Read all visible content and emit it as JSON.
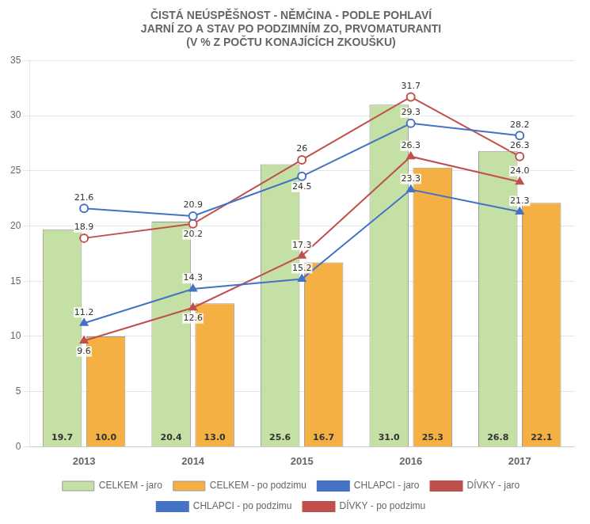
{
  "chart_data": {
    "type": "bar",
    "title": "ČISTÁ NEÚSPĚŠNOST - NĚMČINA - PODLE POHLAVÍ\nJARNÍ ZO A STAV PO PODZIMNÍM ZO, PRVOMATURANTI\n(V % Z POČTU KONAJÍCÍCH ZKOUŠKU)",
    "categories": [
      "2013",
      "2014",
      "2015",
      "2016",
      "2017"
    ],
    "series": [
      {
        "name": "CELKEM - jaro",
        "type": "bar",
        "color": "#c5e0a5",
        "values": [
          19.7,
          20.4,
          25.6,
          31.0,
          26.8
        ],
        "value_labels": [
          "19.7",
          "20.4",
          "25.6",
          "31.0",
          "26.8"
        ]
      },
      {
        "name": "CELKEM - po podzimu",
        "type": "bar",
        "color": "#f4b043",
        "values": [
          10.0,
          13.0,
          16.7,
          25.3,
          22.1
        ],
        "value_labels": [
          "10.0",
          "13.0",
          "16.7",
          "25.3",
          "22.1"
        ]
      },
      {
        "name": "CHLAPCI - jaro",
        "type": "line",
        "color": "#4472c4",
        "marker": "circle",
        "line_style": "solid",
        "values": [
          21.6,
          20.9,
          24.5,
          29.3,
          28.2
        ]
      },
      {
        "name": "DÍVKY - jaro",
        "type": "line",
        "color": "#c0504d",
        "marker": "circle",
        "line_style": "solid",
        "values": [
          18.9,
          20.2,
          26.0,
          31.7,
          26.3
        ]
      },
      {
        "name": "CHLAPCI - po podzimu",
        "type": "line",
        "color": "#4472c4",
        "marker": "triangle",
        "line_style": "solid",
        "values": [
          11.2,
          14.3,
          15.2,
          23.3,
          21.3
        ]
      },
      {
        "name": "DÍVKY - po podzimu",
        "type": "line",
        "color": "#c0504d",
        "marker": "triangle",
        "line_style": "solid",
        "values": [
          9.6,
          12.6,
          17.3,
          26.3,
          24.0
        ],
        "value_labels": [
          "9.6",
          "12.6",
          "17.3",
          "26.3",
          "24.0"
        ]
      }
    ],
    "ylim": [
      0,
      35
    ],
    "yticks": [
      0,
      5,
      10,
      15,
      20,
      25,
      30,
      35
    ],
    "grid": true,
    "legend": "bottom",
    "data_labels": true
  }
}
